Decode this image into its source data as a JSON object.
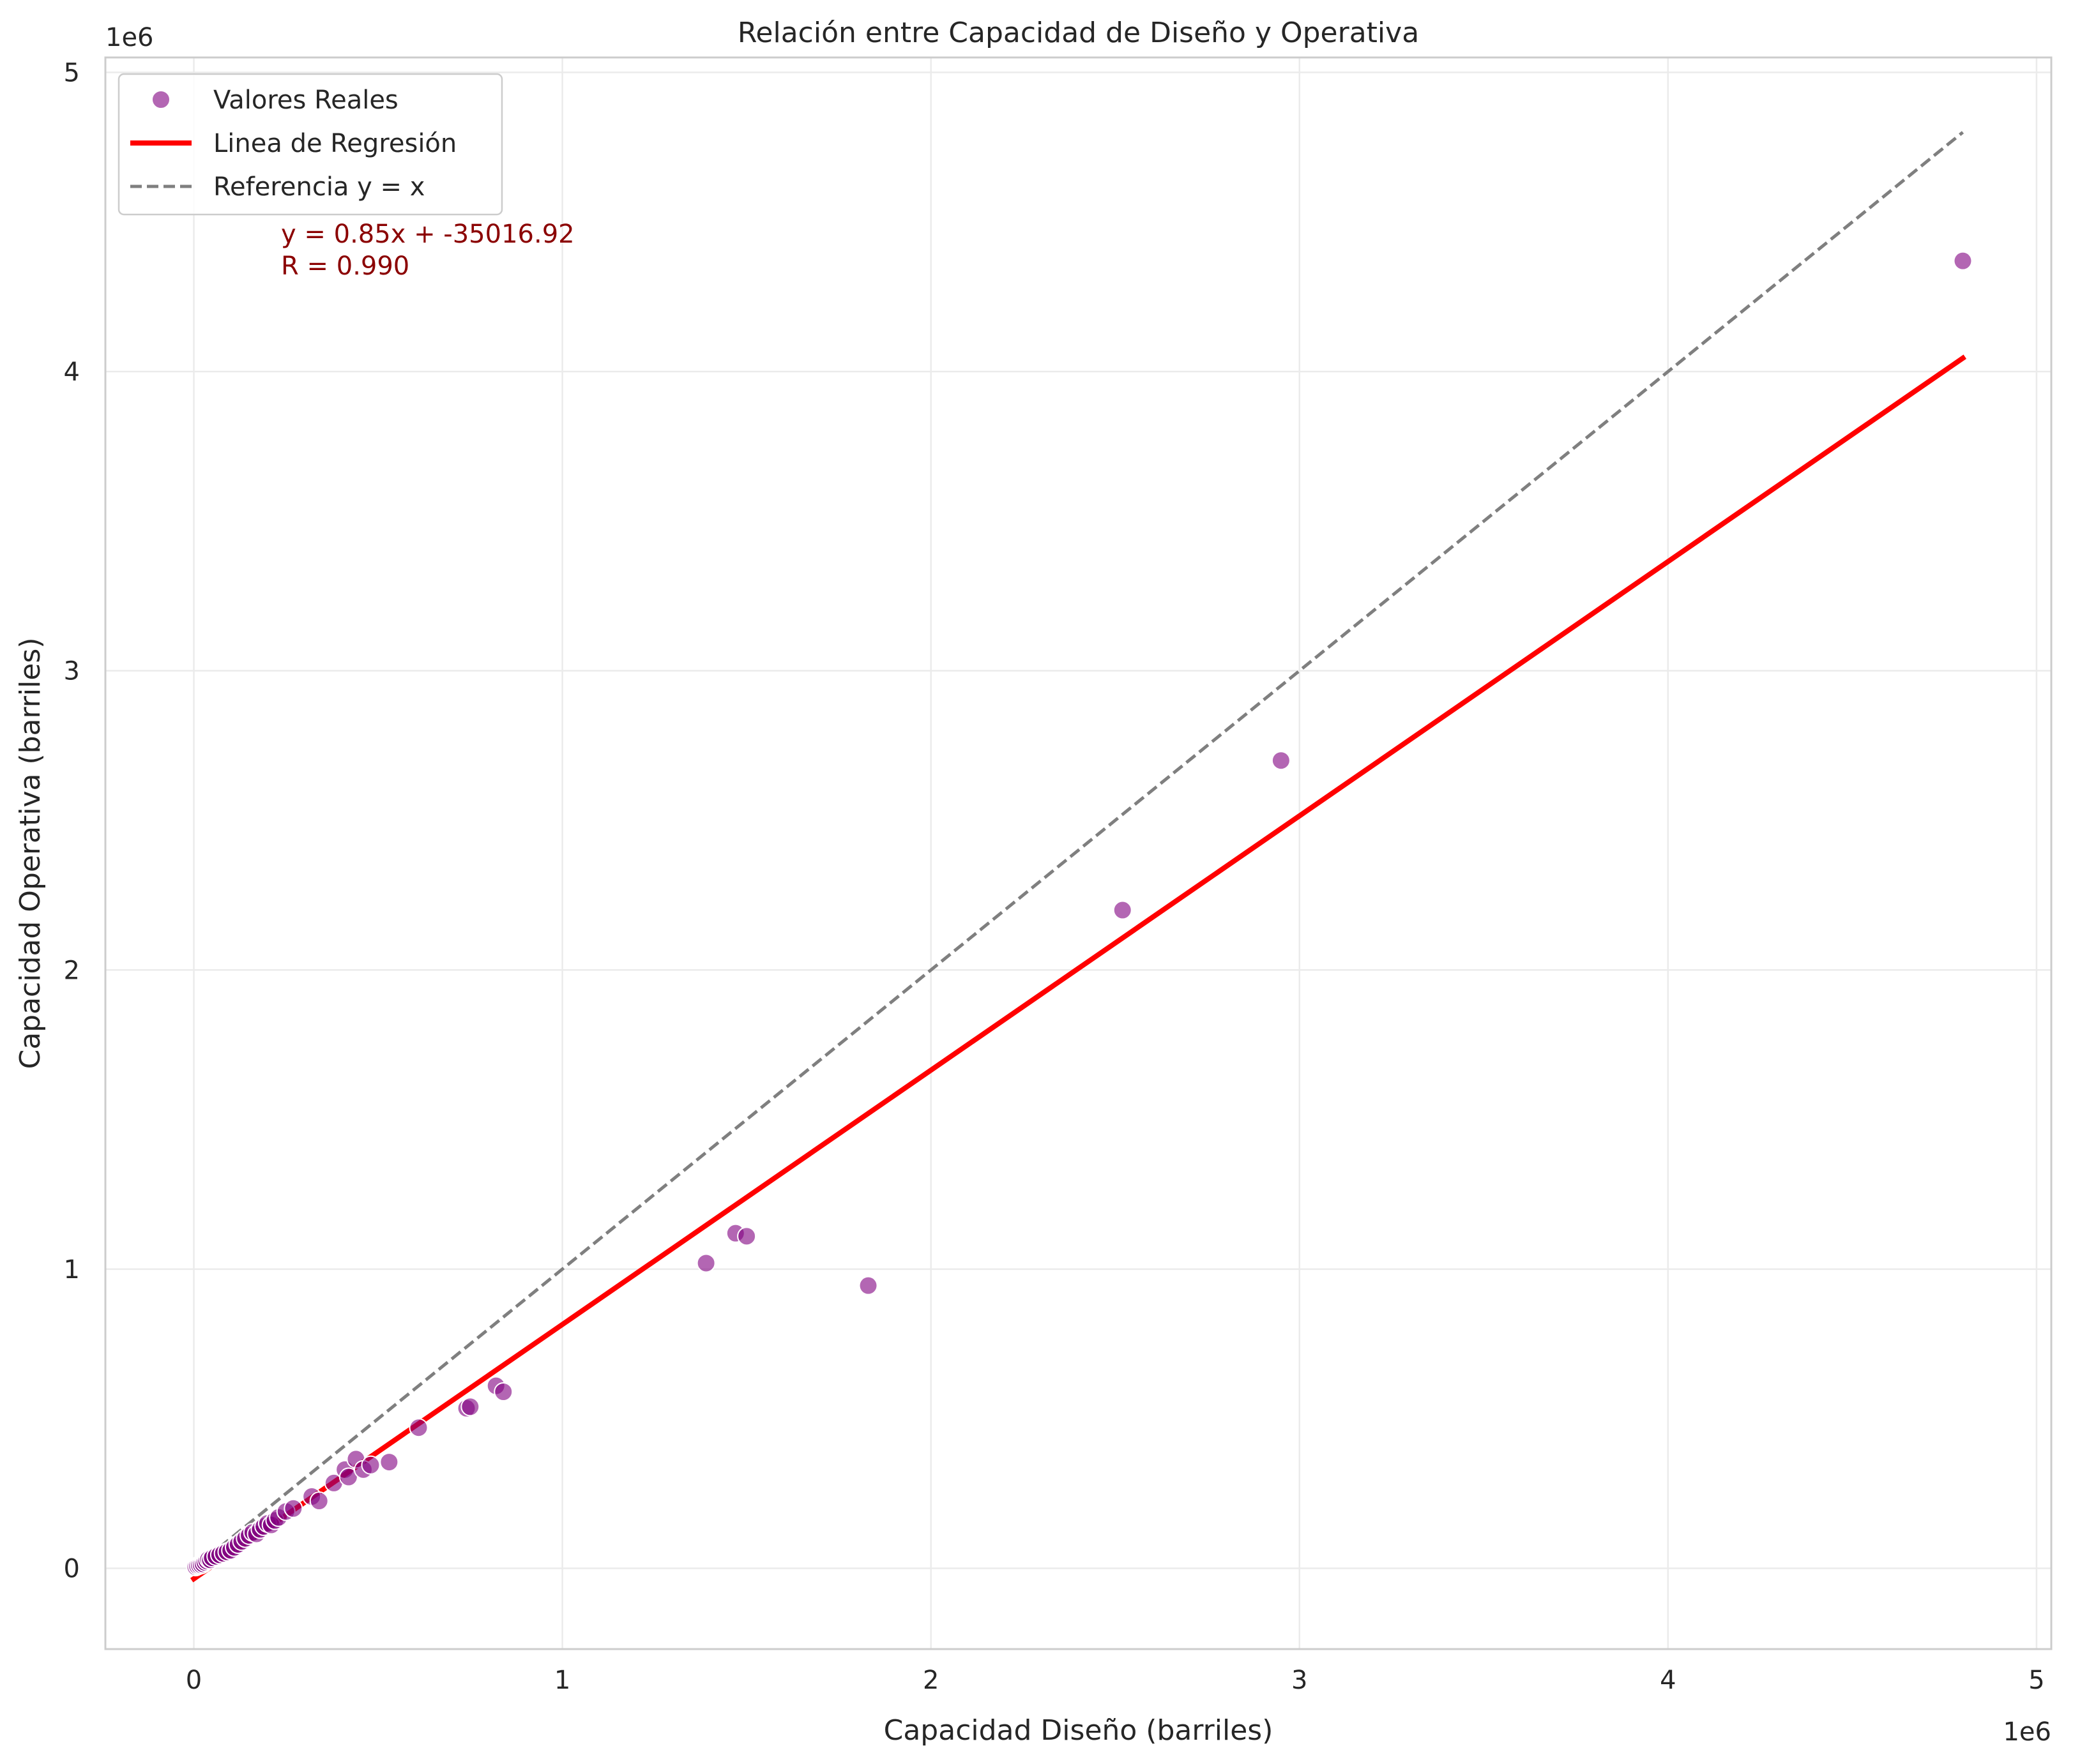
{
  "chart_data": {
    "type": "scatter",
    "title": "Relación entre Capacidad de Diseño y Operativa",
    "xlabel": "Capacidad Diseño (barriles)",
    "ylabel": "Capacidad Operativa (barriles)",
    "x_offset_label": "1e6",
    "y_offset_label": "1e6",
    "xlim": [
      -240000,
      5040000
    ],
    "ylim": [
      -270000,
      5050000
    ],
    "x_ticks": [
      0,
      1,
      2,
      3,
      4,
      5
    ],
    "y_ticks": [
      0,
      1,
      2,
      3,
      4,
      5
    ],
    "x_tick_labels": [
      "0",
      "1",
      "2",
      "3",
      "4",
      "5"
    ],
    "y_tick_labels": [
      "0",
      "1",
      "2",
      "3",
      "4",
      "5"
    ],
    "grid": true,
    "legend_position": "top-left",
    "legend": [
      {
        "label": "Valores Reales",
        "kind": "marker",
        "color": "#a64ca6"
      },
      {
        "label": "Linea de Regresión",
        "kind": "line",
        "color": "#ff0000"
      },
      {
        "label": "Referencia y = x",
        "kind": "dashed",
        "color": "#7f7f7f"
      }
    ],
    "annotation": {
      "line1": "y = 0.85x + -35016.92",
      "line2": "R = 0.990",
      "color": "#8b0000"
    },
    "series": [
      {
        "name": "Valores Reales",
        "kind": "scatter",
        "color": "#a64ca6",
        "points": [
          [
            5000,
            5000
          ],
          [
            10000,
            8000
          ],
          [
            15000,
            10000
          ],
          [
            20000,
            12000
          ],
          [
            25000,
            15000
          ],
          [
            30000,
            20000
          ],
          [
            35000,
            25000
          ],
          [
            40000,
            30000
          ],
          [
            45000,
            28000
          ],
          [
            50000,
            35000
          ],
          [
            60000,
            40000
          ],
          [
            70000,
            45000
          ],
          [
            80000,
            50000
          ],
          [
            90000,
            55000
          ],
          [
            100000,
            60000
          ],
          [
            110000,
            70000
          ],
          [
            120000,
            80000
          ],
          [
            130000,
            90000
          ],
          [
            140000,
            100000
          ],
          [
            150000,
            110000
          ],
          [
            160000,
            120000
          ],
          [
            170000,
            115000
          ],
          [
            180000,
            130000
          ],
          [
            190000,
            140000
          ],
          [
            200000,
            150000
          ],
          [
            210000,
            145000
          ],
          [
            220000,
            160000
          ],
          [
            230000,
            170000
          ],
          [
            250000,
            190000
          ],
          [
            270000,
            200000
          ],
          [
            320000,
            240000
          ],
          [
            340000,
            225000
          ],
          [
            380000,
            285000
          ],
          [
            410000,
            330000
          ],
          [
            420000,
            305000
          ],
          [
            440000,
            365000
          ],
          [
            460000,
            330000
          ],
          [
            480000,
            345000
          ],
          [
            530000,
            355000
          ],
          [
            610000,
            470000
          ],
          [
            740000,
            535000
          ],
          [
            750000,
            540000
          ],
          [
            820000,
            610000
          ],
          [
            840000,
            590000
          ],
          [
            1390000,
            1020000
          ],
          [
            1470000,
            1120000
          ],
          [
            1500000,
            1110000
          ],
          [
            1830000,
            945000
          ],
          [
            2520000,
            2200000
          ],
          [
            2950000,
            2700000
          ],
          [
            4800000,
            4370000
          ]
        ]
      },
      {
        "name": "Linea de Regresión",
        "kind": "line",
        "color": "#ff0000",
        "slope": 0.85,
        "intercept": -35016.92,
        "x_range": [
          0,
          4800000
        ]
      },
      {
        "name": "Referencia y = x",
        "kind": "dashed",
        "color": "#7f7f7f",
        "x_range": [
          0,
          4800000
        ]
      }
    ]
  }
}
